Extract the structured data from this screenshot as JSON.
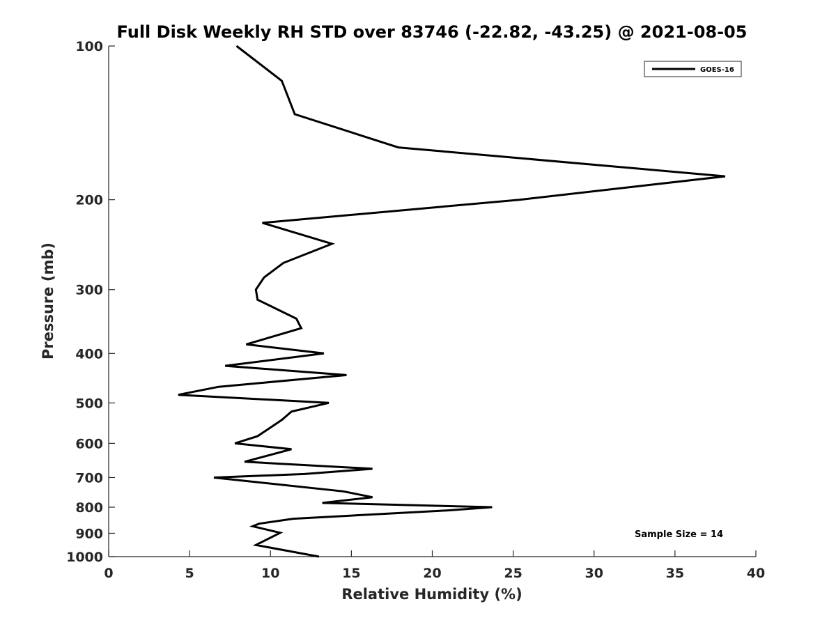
{
  "chart_data": {
    "type": "line",
    "title": "Full Disk Weekly RH STD over 83746 (-22.82, -43.25) @ 2021-08-05",
    "xlabel": "Relative Humidity (%)",
    "ylabel": "Pressure (mb)",
    "xlim": [
      0,
      40
    ],
    "ylim": [
      100,
      1000
    ],
    "y_scale": "log",
    "y_reversed": true,
    "grid": false,
    "legend_position": "top-right",
    "x_ticks": [
      "0",
      "5",
      "10",
      "15",
      "20",
      "25",
      "30",
      "35",
      "40"
    ],
    "y_ticks": [
      "100",
      "200",
      "300",
      "400",
      "500",
      "600",
      "700",
      "800",
      "900",
      "1000"
    ],
    "series": [
      {
        "name": "GOES-16",
        "color": "#000000",
        "x": [
          7.9,
          10.7,
          11.5,
          17.9,
          38.1,
          25.4,
          9.5,
          13.8,
          10.8,
          9.6,
          9.1,
          9.2,
          11.6,
          11.9,
          8.5,
          13.3,
          7.2,
          14.7,
          6.8,
          4.3,
          13.6,
          11.3,
          10.7,
          9.2,
          7.8,
          11.3,
          8.4,
          16.3,
          12.1,
          6.5,
          14.5,
          16.3,
          13.2,
          23.7,
          20.9,
          11.4,
          9.3,
          8.9,
          10.6,
          9.1,
          13.0
        ],
        "y": [
          100,
          117,
          136,
          158,
          180,
          200,
          222,
          244,
          266,
          284,
          300,
          314,
          342,
          357,
          384,
          400,
          423,
          441,
          465,
          482,
          500,
          520,
          540,
          581,
          600,
          616,
          652,
          673,
          689,
          700,
          745,
          765,
          785,
          800,
          812,
          843,
          862,
          872,
          898,
          949,
          1000
        ]
      }
    ],
    "annotation": "Sample Size = 14"
  }
}
